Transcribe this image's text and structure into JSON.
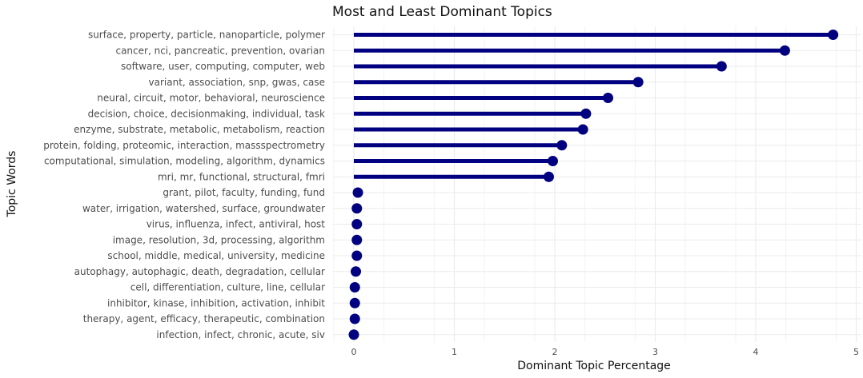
{
  "chart_data": {
    "type": "lollipop",
    "title": "Most and Least Dominant Topics",
    "xlabel": "Dominant Topic Percentage",
    "ylabel": "Topic Words",
    "xlim": [
      -0.2,
      5.0
    ],
    "x_ticks": [
      0,
      1,
      2,
      3,
      4,
      5
    ],
    "grid": true,
    "color": "#000080",
    "categories": [
      "surface, property, particle, nanoparticle, polymer",
      "cancer, nci, pancreatic, prevention, ovarian",
      "software, user, computing, computer, web",
      "variant, association, snp, gwas, case",
      "neural, circuit, motor, behavioral, neuroscience",
      "decision, choice, decisionmaking, individual, task",
      "enzyme, substrate, metabolic, metabolism, reaction",
      "protein, folding, proteomic, interaction, massspectrometry",
      "computational, simulation, modeling, algorithm, dynamics",
      "mri, mr, functional, structural, fmri",
      "grant, pilot, faculty, funding, fund",
      "water, irrigation, watershed, surface, groundwater",
      "virus, influenza, infect, antiviral, host",
      "image, resolution, 3d, processing, algorithm",
      "school, middle, medical, university, medicine",
      "autophagy, autophagic, death, degradation, cellular",
      "cell, differentiation, culture, line, cellular",
      "inhibitor, kinase, inhibition, activation, inhibit",
      "therapy, agent, efficacy, therapeutic, combination",
      "infection, infect, chronic, acute, siv"
    ],
    "values": [
      4.77,
      4.29,
      3.66,
      2.83,
      2.53,
      2.31,
      2.28,
      2.07,
      1.98,
      1.94,
      0.04,
      0.03,
      0.03,
      0.03,
      0.03,
      0.02,
      0.01,
      0.01,
      0.01,
      0.0
    ]
  }
}
